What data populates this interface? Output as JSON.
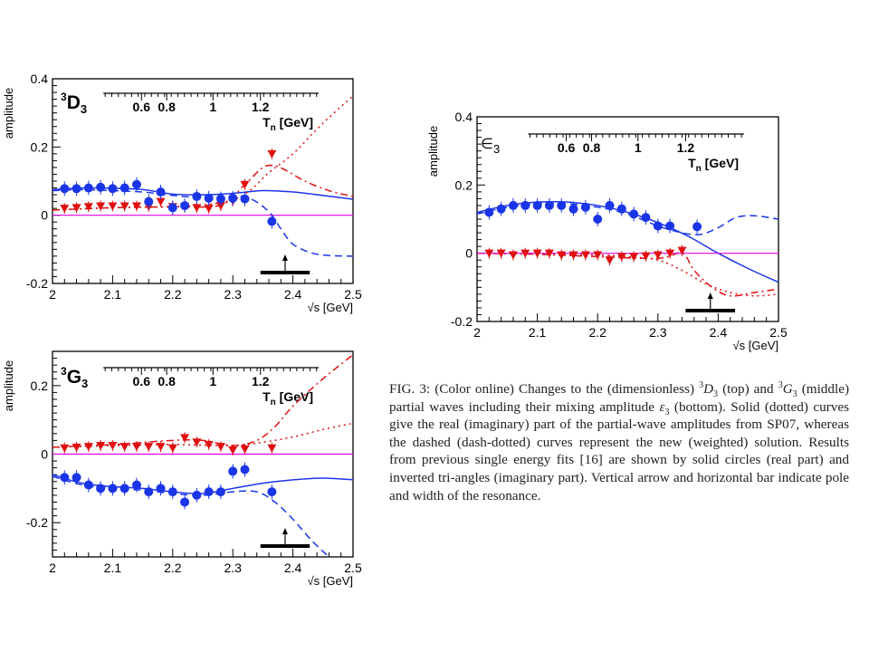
{
  "chart_data": [
    {
      "id": "d3",
      "type": "scatter",
      "panel_label": {
        "sup": "3",
        "main": "D",
        "sub": "3"
      },
      "ylabel": "amplitude",
      "xlabel": "√s [GeV]",
      "xlim": [
        2.0,
        2.5
      ],
      "ylim": [
        -0.2,
        0.4
      ],
      "x_ticks": [
        "2",
        "2.1",
        "2.2",
        "2.3",
        "2.4",
        "2.5"
      ],
      "y_ticks": [
        "-0.2",
        "0",
        "0.2",
        "0.4"
      ],
      "top_axis": {
        "label": "T",
        "label_sub": "n",
        "label_unit": " [GeV]",
        "ticks": [
          "0.6",
          "0.8",
          "1",
          "1.2"
        ],
        "tick_x": [
          2.148,
          2.19,
          2.267,
          2.346
        ]
      },
      "resonance": {
        "pole_x": 2.387,
        "bar_x": [
          2.346,
          2.428
        ]
      },
      "real_points": {
        "x": [
          2.02,
          2.04,
          2.06,
          2.08,
          2.1,
          2.12,
          2.14,
          2.16,
          2.18,
          2.2,
          2.22,
          2.24,
          2.26,
          2.28,
          2.3,
          2.32,
          2.365
        ],
        "y": [
          0.078,
          0.078,
          0.08,
          0.082,
          0.078,
          0.08,
          0.09,
          0.04,
          0.068,
          0.022,
          0.028,
          0.055,
          0.05,
          0.048,
          0.05,
          0.048,
          -0.018
        ]
      },
      "imag_points": {
        "x": [
          2.02,
          2.04,
          2.06,
          2.08,
          2.1,
          2.12,
          2.14,
          2.16,
          2.18,
          2.2,
          2.22,
          2.24,
          2.26,
          2.28,
          2.3,
          2.32,
          2.365
        ],
        "y": [
          0.02,
          0.022,
          0.025,
          0.027,
          0.027,
          0.027,
          0.027,
          0.026,
          0.04,
          0.025,
          0.025,
          0.022,
          0.02,
          0.028,
          0.042,
          0.09,
          0.18
        ]
      },
      "series": [
        {
          "style": "solid",
          "color": "#1a35e8",
          "x": [
            2.0,
            2.05,
            2.1,
            2.15,
            2.2,
            2.25,
            2.3,
            2.35,
            2.4,
            2.45,
            2.5
          ],
          "y": [
            0.075,
            0.08,
            0.079,
            0.075,
            0.062,
            0.06,
            0.064,
            0.072,
            0.068,
            0.058,
            0.047
          ]
        },
        {
          "style": "dashed",
          "color": "#1a35e8",
          "x": [
            2.0,
            2.05,
            2.1,
            2.15,
            2.2,
            2.25,
            2.3,
            2.33,
            2.36,
            2.38,
            2.4,
            2.43,
            2.46,
            2.5
          ],
          "y": [
            0.072,
            0.075,
            0.072,
            0.068,
            0.058,
            0.052,
            0.055,
            0.048,
            0.01,
            -0.04,
            -0.085,
            -0.11,
            -0.118,
            -0.12
          ]
        },
        {
          "style": "dotted",
          "color": "#e01010",
          "x": [
            2.0,
            2.1,
            2.2,
            2.25,
            2.3,
            2.33,
            2.36,
            2.4,
            2.45,
            2.5
          ],
          "y": [
            0.015,
            0.022,
            0.025,
            0.03,
            0.045,
            0.075,
            0.125,
            0.18,
            0.27,
            0.35
          ]
        },
        {
          "style": "dashdot",
          "color": "#e01010",
          "x": [
            2.0,
            2.1,
            2.2,
            2.28,
            2.32,
            2.35,
            2.37,
            2.39,
            2.42,
            2.46,
            2.5
          ],
          "y": [
            0.015,
            0.022,
            0.025,
            0.03,
            0.09,
            0.14,
            0.145,
            0.13,
            0.1,
            0.072,
            0.055
          ]
        },
        {
          "style": "zero",
          "color": "#e000e0",
          "x": [
            2.0,
            2.5
          ],
          "y": [
            0,
            0
          ]
        }
      ]
    },
    {
      "id": "g3",
      "type": "scatter",
      "panel_label": {
        "sup": "3",
        "main": "G",
        "sub": "3"
      },
      "ylabel": "amplitude",
      "xlabel": "√s [GeV]",
      "xlim": [
        2.0,
        2.5
      ],
      "ylim": [
        -0.3,
        0.3
      ],
      "x_ticks": [
        "2",
        "2.1",
        "2.2",
        "2.3",
        "2.4",
        "2.5"
      ],
      "y_ticks": [
        "-0.2",
        "0",
        "0.2"
      ],
      "top_axis": {
        "label": "T",
        "label_sub": "n",
        "label_unit": " [GeV]",
        "ticks": [
          "0.6",
          "0.8",
          "1",
          "1.2"
        ],
        "tick_x": [
          2.148,
          2.19,
          2.267,
          2.346
        ]
      },
      "resonance": {
        "pole_x": 2.387,
        "bar_x": [
          2.346,
          2.428
        ]
      },
      "real_points": {
        "x": [
          2.02,
          2.04,
          2.06,
          2.08,
          2.1,
          2.12,
          2.14,
          2.16,
          2.18,
          2.2,
          2.22,
          2.24,
          2.26,
          2.28,
          2.3,
          2.32,
          2.365
        ],
        "y": [
          -0.068,
          -0.068,
          -0.09,
          -0.1,
          -0.1,
          -0.1,
          -0.09,
          -0.11,
          -0.1,
          -0.11,
          -0.14,
          -0.12,
          -0.11,
          -0.11,
          -0.05,
          -0.045,
          -0.11
        ]
      },
      "imag_points": {
        "x": [
          2.02,
          2.04,
          2.06,
          2.08,
          2.1,
          2.12,
          2.14,
          2.16,
          2.18,
          2.2,
          2.22,
          2.24,
          2.26,
          2.28,
          2.3,
          2.32,
          2.365
        ],
        "y": [
          0.018,
          0.02,
          0.022,
          0.025,
          0.025,
          0.022,
          0.022,
          0.022,
          0.022,
          0.018,
          0.048,
          0.035,
          0.028,
          0.022,
          0.012,
          0.015,
          0.018
        ]
      },
      "series": [
        {
          "style": "solid",
          "color": "#1a35e8",
          "x": [
            2.0,
            2.05,
            2.1,
            2.15,
            2.2,
            2.25,
            2.3,
            2.35,
            2.4,
            2.45,
            2.5
          ],
          "y": [
            -0.06,
            -0.085,
            -0.095,
            -0.1,
            -0.11,
            -0.115,
            -0.1,
            -0.085,
            -0.075,
            -0.07,
            -0.075
          ]
        },
        {
          "style": "dashed",
          "color": "#1a35e8",
          "x": [
            2.0,
            2.05,
            2.1,
            2.15,
            2.2,
            2.25,
            2.3,
            2.34,
            2.37,
            2.4,
            2.43,
            2.46
          ],
          "y": [
            -0.065,
            -0.09,
            -0.1,
            -0.105,
            -0.115,
            -0.12,
            -0.11,
            -0.11,
            -0.14,
            -0.19,
            -0.25,
            -0.3
          ]
        },
        {
          "style": "dotted",
          "color": "#e01010",
          "x": [
            2.0,
            2.1,
            2.2,
            2.3,
            2.35,
            2.4,
            2.45,
            2.5
          ],
          "y": [
            0.02,
            0.025,
            0.028,
            0.025,
            0.035,
            0.05,
            0.072,
            0.09
          ]
        },
        {
          "style": "dashdot",
          "color": "#e01010",
          "x": [
            2.0,
            2.1,
            2.2,
            2.25,
            2.3,
            2.34,
            2.37,
            2.4,
            2.45,
            2.5
          ],
          "y": [
            0.02,
            0.028,
            0.04,
            0.04,
            0.025,
            0.04,
            0.08,
            0.14,
            0.22,
            0.29
          ]
        },
        {
          "style": "zero",
          "color": "#e000e0",
          "x": [
            2.0,
            2.5
          ],
          "y": [
            0,
            0
          ]
        }
      ]
    },
    {
      "id": "eps",
      "type": "scatter",
      "panel_label": {
        "sup": "",
        "main": "∈",
        "sub": "3"
      },
      "ylabel": "amplitude",
      "xlabel": "√s [GeV]",
      "xlim": [
        2.0,
        2.5
      ],
      "ylim": [
        -0.2,
        0.4
      ],
      "x_ticks": [
        "2",
        "2.1",
        "2.2",
        "2.3",
        "2.4",
        "2.5"
      ],
      "y_ticks": [
        "-0.2",
        "0",
        "0.2",
        "0.4"
      ],
      "top_axis": {
        "label": "T",
        "label_sub": "n",
        "label_unit": " [GeV]",
        "ticks": [
          "0.6",
          "0.8",
          "1",
          "1.2"
        ],
        "tick_x": [
          2.148,
          2.19,
          2.267,
          2.346
        ]
      },
      "resonance": {
        "pole_x": 2.387,
        "bar_x": [
          2.346,
          2.428
        ]
      },
      "real_points": {
        "x": [
          2.02,
          2.04,
          2.06,
          2.08,
          2.1,
          2.12,
          2.14,
          2.16,
          2.18,
          2.2,
          2.22,
          2.24,
          2.26,
          2.28,
          2.3,
          2.32,
          2.365
        ],
        "y": [
          0.12,
          0.13,
          0.14,
          0.14,
          0.14,
          0.14,
          0.14,
          0.13,
          0.135,
          0.1,
          0.14,
          0.13,
          0.115,
          0.105,
          0.08,
          0.08,
          0.078
        ]
      },
      "imag_points": {
        "x": [
          2.02,
          2.04,
          2.06,
          2.08,
          2.1,
          2.12,
          2.14,
          2.16,
          2.18,
          2.2,
          2.22,
          2.24,
          2.26,
          2.28,
          2.3,
          2.32,
          2.34
        ],
        "y": [
          0.0,
          0.0,
          -0.005,
          0.0,
          0.0,
          0.0,
          -0.005,
          -0.005,
          -0.005,
          -0.005,
          -0.02,
          -0.01,
          -0.01,
          -0.008,
          -0.005,
          0.0,
          0.008
        ]
      },
      "series": [
        {
          "style": "solid",
          "color": "#1a35e8",
          "x": [
            2.0,
            2.05,
            2.1,
            2.15,
            2.2,
            2.25,
            2.3,
            2.35,
            2.4,
            2.45,
            2.5
          ],
          "y": [
            0.12,
            0.14,
            0.15,
            0.15,
            0.14,
            0.12,
            0.09,
            0.05,
            0.0,
            -0.045,
            -0.085
          ]
        },
        {
          "style": "dashed",
          "color": "#1a35e8",
          "x": [
            2.0,
            2.05,
            2.1,
            2.15,
            2.2,
            2.25,
            2.3,
            2.34,
            2.37,
            2.4,
            2.43,
            2.46,
            2.5
          ],
          "y": [
            0.115,
            0.135,
            0.145,
            0.145,
            0.135,
            0.115,
            0.08,
            0.06,
            0.055,
            0.075,
            0.105,
            0.11,
            0.1
          ]
        },
        {
          "style": "dotted",
          "color": "#e01010",
          "x": [
            2.0,
            2.1,
            2.2,
            2.25,
            2.3,
            2.34,
            2.38,
            2.42,
            2.46,
            2.5
          ],
          "y": [
            0.0,
            -0.002,
            -0.005,
            -0.01,
            -0.02,
            -0.05,
            -0.09,
            -0.115,
            -0.125,
            -0.12
          ]
        },
        {
          "style": "dashdot",
          "color": "#e01010",
          "x": [
            2.0,
            2.1,
            2.2,
            2.3,
            2.34,
            2.36,
            2.39,
            2.42,
            2.46,
            2.5
          ],
          "y": [
            0.0,
            -0.003,
            -0.01,
            -0.015,
            0.0,
            -0.05,
            -0.1,
            -0.125,
            -0.115,
            -0.105
          ]
        },
        {
          "style": "zero",
          "color": "#e000e0",
          "x": [
            2.0,
            2.5
          ],
          "y": [
            0,
            0
          ]
        }
      ]
    }
  ],
  "caption": {
    "html": "FIG. 3: (Color online) Changes to the (dimensionless) <sup>3</sup><i>D</i><sub>3</sub> (top) and <sup>3</sup><i>G</i><sub>3</sub> (middle) partial waves including their mixing amplitude <i>ε</i><sub>3</sub> (bottom). Solid (dotted) curves give the real (imaginary) part of the partial-wave amplitudes from SP07, whereas the dashed (dash-dotted) curves represent the new (weighted) solution. Results from previous single energy fits [16] are shown by solid circles (real part) and inverted tri-angles (imaginary part). Vertical arrow and horizontal bar indicate pole and width of the resonance."
  }
}
